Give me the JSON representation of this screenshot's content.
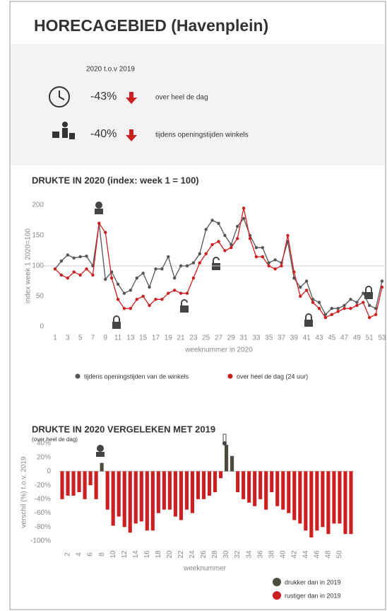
{
  "header": {
    "title": "HORECAGEBIED (Havenplein)",
    "subtitle": "2020 t.o.v 2019",
    "kpis": [
      {
        "value": "-43%",
        "text": "over heel de dag"
      },
      {
        "value": "-40%",
        "text": "tijdens openingstijden winkels"
      }
    ]
  },
  "chart_data": [
    {
      "type": "line",
      "title": "DRUKTE IN 2020 (index: week 1 = 100)",
      "y_label": "index week 1 2020=100",
      "x_label": "weeknummer in 2020",
      "x": [
        1,
        2,
        3,
        4,
        5,
        6,
        7,
        8,
        9,
        10,
        11,
        12,
        13,
        14,
        15,
        16,
        17,
        18,
        19,
        20,
        21,
        22,
        23,
        24,
        25,
        26,
        27,
        28,
        29,
        30,
        31,
        32,
        33,
        34,
        35,
        36,
        37,
        38,
        39,
        40,
        41,
        42,
        43,
        44,
        45,
        46,
        47,
        48,
        49,
        50,
        51,
        52,
        53
      ],
      "xlim": [
        1,
        53
      ],
      "xticks": [
        1,
        3,
        5,
        7,
        9,
        11,
        13,
        15,
        17,
        19,
        21,
        23,
        25,
        27,
        29,
        31,
        33,
        35,
        37,
        39,
        41,
        43,
        45,
        47,
        49,
        51,
        53
      ],
      "ylim": [
        0,
        200
      ],
      "yticks": [
        0,
        50,
        100,
        150,
        200
      ],
      "reference_line": 100,
      "series": [
        {
          "name": "tijdens openingstijden van de winkels",
          "color": "#555555",
          "values": [
            95,
            108,
            118,
            113,
            115,
            116,
            100,
            170,
            78,
            90,
            70,
            55,
            60,
            80,
            88,
            65,
            95,
            95,
            115,
            80,
            100,
            100,
            105,
            120,
            160,
            175,
            170,
            150,
            135,
            165,
            178,
            150,
            130,
            130,
            105,
            110,
            105,
            140,
            80,
            65,
            75,
            45,
            40,
            20,
            30,
            30,
            35,
            45,
            40,
            55,
            35,
            30,
            75
          ]
        },
        {
          "name": "over heel de dag (24 uur)",
          "color": "#cc1f1f",
          "values": [
            95,
            85,
            80,
            90,
            85,
            95,
            85,
            170,
            155,
            80,
            45,
            30,
            30,
            45,
            50,
            35,
            45,
            45,
            55,
            60,
            55,
            55,
            80,
            105,
            120,
            135,
            140,
            125,
            130,
            145,
            195,
            145,
            115,
            115,
            100,
            95,
            100,
            150,
            90,
            50,
            60,
            40,
            30,
            15,
            20,
            25,
            30,
            30,
            35,
            40,
            15,
            20,
            65
          ]
        }
      ]
    },
    {
      "type": "bar",
      "title": "DRUKTE IN 2020 VERGELEKEN MET 2019",
      "subtitle": "(over heel de dag)",
      "y_label": "verschil (%) t.o.v. 2019",
      "x_label": "weeknummer",
      "categories": [
        null,
        2,
        null,
        4,
        null,
        6,
        null,
        8,
        null,
        10,
        null,
        12,
        null,
        14,
        null,
        16,
        null,
        18,
        null,
        20,
        null,
        22,
        null,
        24,
        null,
        26,
        null,
        28,
        null,
        30,
        null,
        32,
        null,
        34,
        null,
        36,
        null,
        38,
        null,
        40,
        null,
        42,
        null,
        44,
        null,
        46,
        null,
        48,
        null,
        50,
        null,
        null
      ],
      "values": [
        -40,
        -35,
        -35,
        -30,
        -40,
        -20,
        -40,
        12,
        -55,
        -78,
        -65,
        -80,
        -88,
        -75,
        -72,
        -85,
        -85,
        -60,
        -55,
        -55,
        -65,
        -70,
        -55,
        -60,
        -40,
        -40,
        -35,
        -30,
        -10,
        38,
        22,
        -30,
        -40,
        -45,
        -50,
        -40,
        -55,
        -30,
        -50,
        -55,
        -60,
        -70,
        -75,
        -85,
        -95,
        -85,
        -80,
        -90,
        -75,
        -75,
        -90,
        -90
      ],
      "ylim": [
        -100,
        40
      ],
      "yticks": [
        {
          "value": 40,
          "label": "40%"
        },
        {
          "value": 20,
          "label": "20%"
        },
        0,
        {
          "value": -20,
          "label": "-20%"
        },
        {
          "value": -40,
          "label": "-40%"
        },
        {
          "value": -60,
          "label": "-60%"
        },
        {
          "value": -80,
          "label": "-80%"
        },
        {
          "value": -100,
          "label": "-100%"
        }
      ],
      "legend": [
        {
          "name": "drukker dan in 2019",
          "color": "#4d4a40"
        },
        {
          "name": "rustiger dan in 2019",
          "color": "#cc1f1f"
        }
      ]
    }
  ]
}
